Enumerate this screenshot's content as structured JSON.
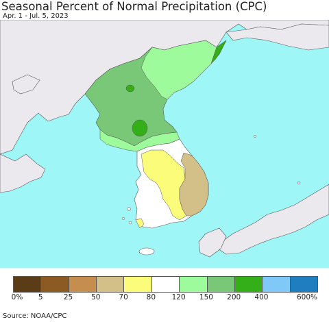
{
  "header": {
    "title": "Seasonal Percent of Normal Precipitation (CPC)",
    "subtitle": "Apr. 1 - Jul. 5, 2023"
  },
  "colors": {
    "ocean": "#9ff6f6",
    "land_outside": "#ece9ee",
    "border": "#555555",
    "no_data_white": "#ffffff"
  },
  "legend": {
    "bins": [
      {
        "color": "#5a3c16"
      },
      {
        "color": "#8c5a23"
      },
      {
        "color": "#c68e4e"
      },
      {
        "color": "#d3bf88"
      },
      {
        "color": "#fbfd7a"
      },
      {
        "color": "#ffffff"
      },
      {
        "color": "#9dfb9c"
      },
      {
        "color": "#78c878"
      },
      {
        "color": "#34af18"
      },
      {
        "color": "#80c8f8"
      },
      {
        "color": "#1f7ec0"
      }
    ],
    "tick_labels": [
      "0%",
      "5",
      "25",
      "50",
      "70",
      "80",
      "120",
      "150",
      "200",
      "400",
      "600%"
    ]
  },
  "footer": {
    "source": "Source: NOAA/CPC"
  }
}
